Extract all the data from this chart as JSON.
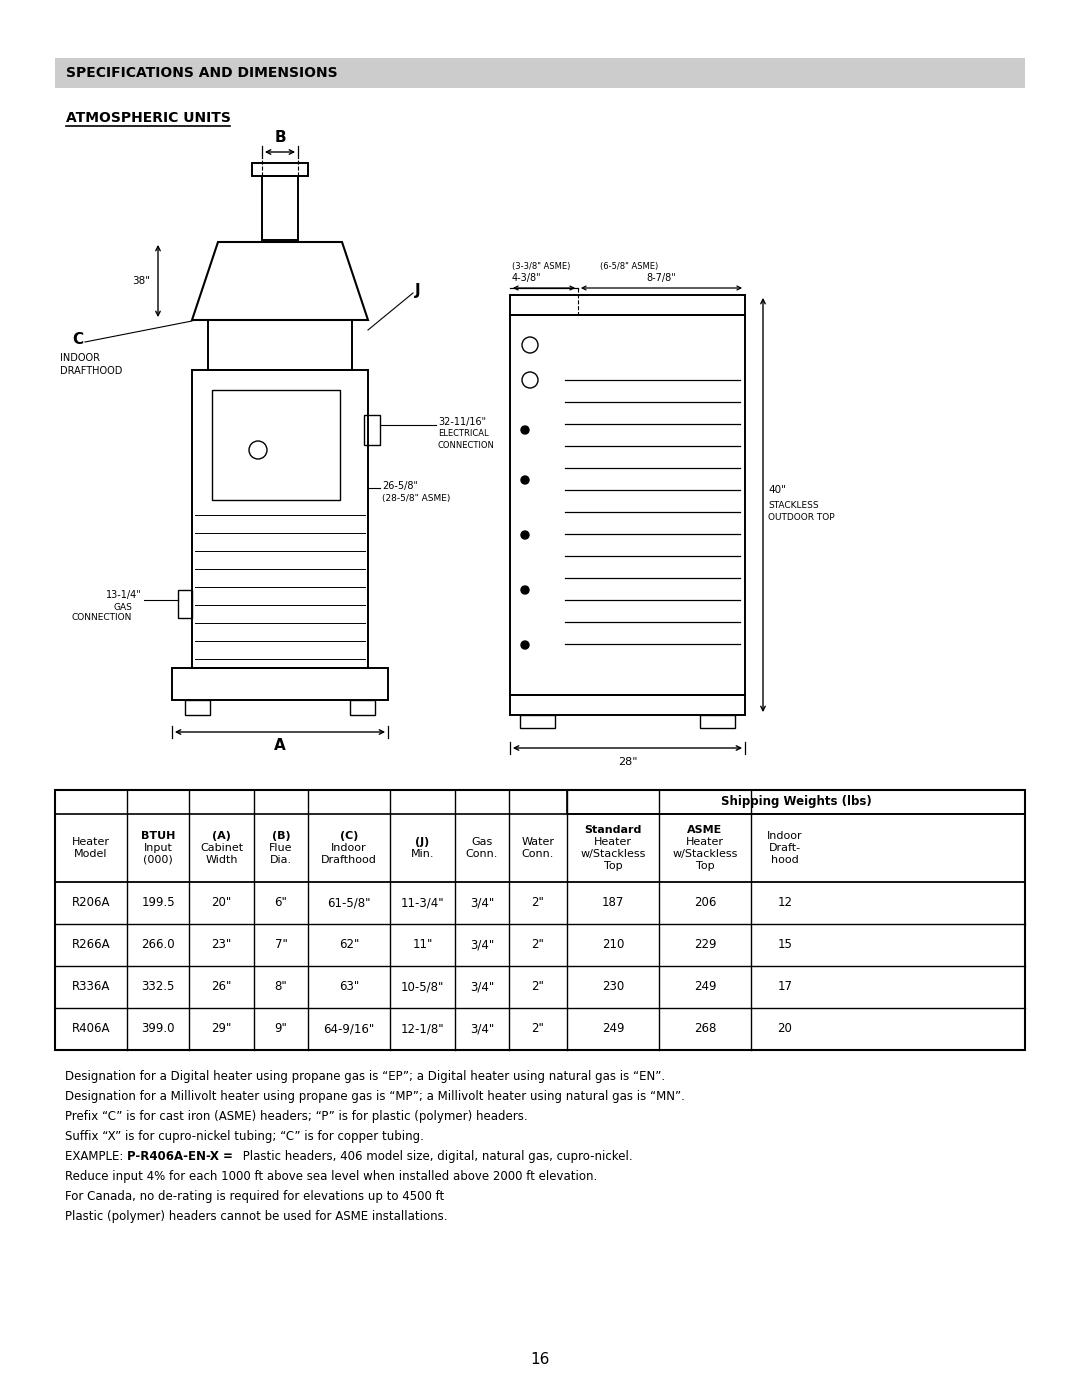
{
  "title": "SPECIFICATIONS AND DIMENSIONS",
  "subtitle": "ATMOSPHERIC UNITS",
  "page_number": "16",
  "table_data": [
    [
      "R206A",
      "199.5",
      "20\"",
      "6\"",
      "61-5/8\"",
      "11-3/4\"",
      "3/4\"",
      "2\"",
      "187",
      "206",
      "12"
    ],
    [
      "R266A",
      "266.0",
      "23\"",
      "7\"",
      "62\"",
      "11\"",
      "3/4\"",
      "2\"",
      "210",
      "229",
      "15"
    ],
    [
      "R336A",
      "332.5",
      "26\"",
      "8\"",
      "63\"",
      "10-5/8\"",
      "3/4\"",
      "2\"",
      "230",
      "249",
      "17"
    ],
    [
      "R406A",
      "399.0",
      "29\"",
      "9\"",
      "64-9/16\"",
      "12-1/8\"",
      "3/4\"",
      "2\"",
      "249",
      "268",
      "20"
    ]
  ],
  "footnotes": [
    "Designation for a Digital heater using propane gas is “EP”; a Digital heater using natural gas is “EN”.",
    "Designation for a Millivolt heater using propane gas is “MP”; a Millivolt heater using natural gas is “MN”.",
    "Prefix “C” is for cast iron (ASME) headers; “P” is for plastic (polymer) headers.",
    "Suffix “X” is for cupro-nickel tubing; “C” is for copper tubing.",
    "Reduce input 4% for each 1000 ft above sea level when installed above 2000 ft elevation.",
    "For Canada, no de-rating is required for elevations up to 4500 ft",
    "Plastic (polymer) headers cannot be used for ASME installations."
  ],
  "example_prefix": "EXAMPLE: ",
  "example_bold": "P-R406A-EN-X =",
  "example_rest": " Plastic headers, 406 model size, digital, natural gas, cupro-nickel.",
  "bg_color": "#ffffff",
  "header_bg": "#cccccc"
}
